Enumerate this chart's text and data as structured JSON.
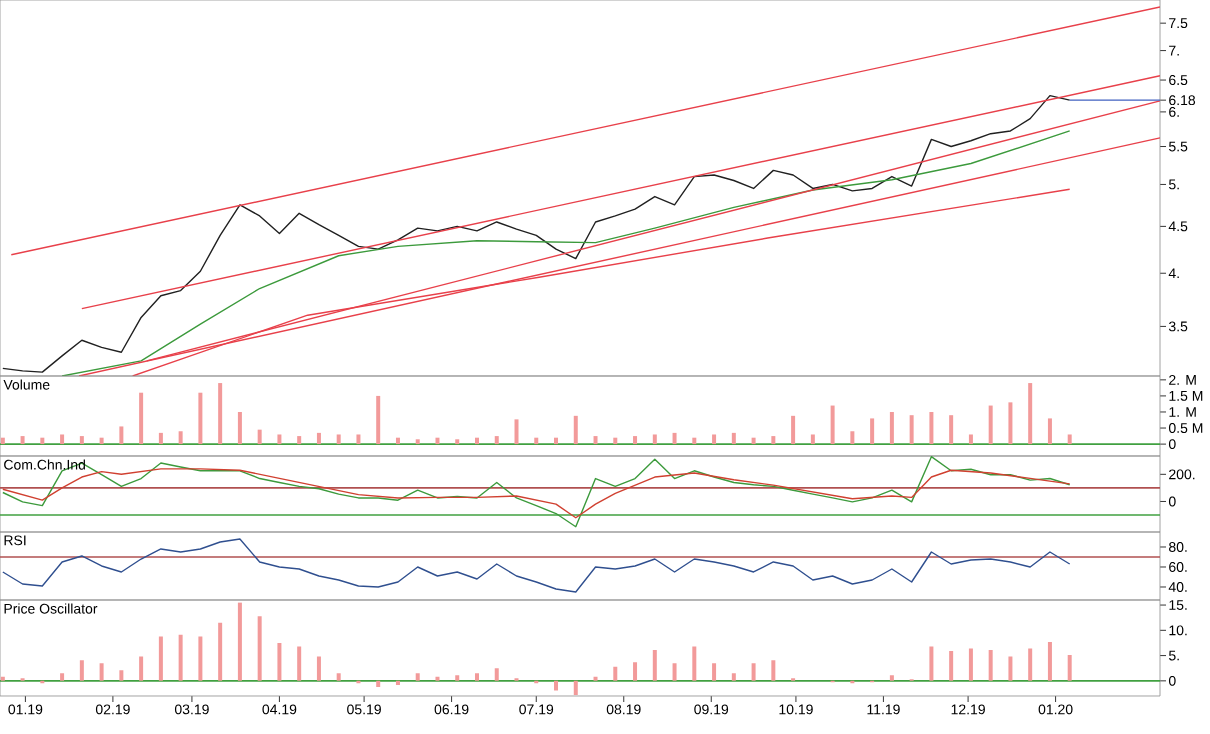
{
  "chart_data": [
    {
      "type": "line",
      "log": "y",
      "xlim": [
        "2018-12-23",
        "2020-02-07"
      ],
      "ylim": [
        3.09,
        7.95
      ],
      "tick_labels": "y",
      "yticks": [
        3.5,
        {
          "value": 4,
          "label": "4."
        },
        4.5,
        {
          "value": 5,
          "label": "5."
        },
        5.5,
        {
          "value": 6,
          "label": "6."
        },
        6.18,
        6.5,
        {
          "value": 7,
          "label": "7."
        },
        7.5
      ],
      "x": [
        "2018-12-24",
        "2018-12-31",
        "2019-01-07",
        "2019-01-14",
        "2019-01-21",
        "2019-01-28",
        "2019-02-04",
        "2019-02-11",
        "2019-02-18",
        "2019-02-25",
        "2019-03-04",
        "2019-03-11",
        "2019-03-18",
        "2019-03-25",
        "2019-04-01",
        "2019-04-08",
        "2019-04-15",
        "2019-04-22",
        "2019-04-29",
        "2019-05-06",
        "2019-05-13",
        "2019-05-20",
        "2019-05-27",
        "2019-06-03",
        "2019-06-10",
        "2019-06-17",
        "2019-06-24",
        "2019-07-01",
        "2019-07-08",
        "2019-07-15",
        "2019-07-22",
        "2019-07-29",
        "2019-08-05",
        "2019-08-12",
        "2019-08-19",
        "2019-08-26",
        "2019-09-02",
        "2019-09-09",
        "2019-09-16",
        "2019-09-23",
        "2019-09-30",
        "2019-10-07",
        "2019-10-14",
        "2019-10-21",
        "2019-10-28",
        "2019-11-04",
        "2019-11-11",
        "2019-11-18",
        "2019-11-25",
        "2019-12-02",
        "2019-12-09",
        "2019-12-16",
        "2019-12-23",
        "2019-12-30",
        "2020-01-06"
      ],
      "series": [
        {
          "color": "#202020",
          "values": [
            3.15,
            3.13,
            3.12,
            3.25,
            3.38,
            3.32,
            3.28,
            3.58,
            3.78,
            3.83,
            4.02,
            4.4,
            4.75,
            4.62,
            4.42,
            4.65,
            4.52,
            4.4,
            4.28,
            4.25,
            4.35,
            4.48,
            4.45,
            4.5,
            4.45,
            4.55,
            4.47,
            4.4,
            4.25,
            4.15,
            4.55,
            4.62,
            4.7,
            4.85,
            4.75,
            5.1,
            5.12,
            5.05,
            4.95,
            5.18,
            5.12,
            4.95,
            5.0,
            4.92,
            4.95,
            5.1,
            4.98,
            5.6,
            5.5,
            5.58,
            5.68,
            5.72,
            5.9,
            6.25,
            6.18
          ]
        },
        {
          "color": "#3c9a3c",
          "x": [
            "2019-01-14",
            "2019-02-11",
            "2019-03-04",
            "2019-03-25",
            "2019-04-22",
            "2019-05-13",
            "2019-06-10",
            "2019-07-01",
            "2019-07-22",
            "2019-08-12",
            "2019-09-09",
            "2019-10-07",
            "2019-11-04",
            "2019-12-02",
            "2020-01-06"
          ],
          "values": [
            3.09,
            3.21,
            3.52,
            3.85,
            4.18,
            4.28,
            4.34,
            4.33,
            4.32,
            4.48,
            4.72,
            4.93,
            5.06,
            5.27,
            5.72
          ]
        },
        {
          "color": "#e8404a",
          "x": [
            "2018-12-27",
            "2020-02-07"
          ],
          "values": [
            4.19,
            7.81
          ]
        },
        {
          "color": "#e8404a",
          "x": [
            "2019-01-21",
            "2020-02-07"
          ],
          "values": [
            3.66,
            6.57
          ]
        },
        {
          "color": "#e8404a",
          "x": [
            "2019-02-13",
            "2020-02-07"
          ],
          "values": [
            3.21,
            6.17
          ]
        },
        {
          "color": "#e8404a",
          "x": [
            "2019-01-20",
            "2020-02-07"
          ],
          "values": [
            3.09,
            5.62
          ]
        },
        {
          "color": "#e8404a",
          "x": [
            "2019-02-08",
            "2019-04-11",
            "2019-07-02",
            "2019-09-21",
            "2020-01-06"
          ],
          "values": [
            3.09,
            3.6,
            3.96,
            4.37,
            4.94
          ]
        },
        {
          "color": "#4060c0",
          "x": [
            "2020-01-06",
            "2020-02-07"
          ],
          "values": [
            6.18,
            6.18
          ]
        }
      ]
    },
    {
      "type": "bar",
      "title": "Volume",
      "xlim": [
        "2018-12-23",
        "2020-02-07"
      ],
      "ylim": [
        -0.37,
        2.12
      ],
      "tick_labels": "y",
      "color": "#f29a9a",
      "yticks": [
        0,
        {
          "value": 0.5,
          "label": "0.5 M"
        },
        {
          "value": 1,
          "label": "1. M"
        },
        {
          "value": 1.5,
          "label": "1.5 M"
        },
        {
          "value": 2,
          "label": "2. M"
        }
      ],
      "ref_lines": [
        {
          "axis": "y",
          "value": 0,
          "color": "#40a040"
        }
      ],
      "x": [
        "2018-12-24",
        "2018-12-31",
        "2019-01-07",
        "2019-01-14",
        "2019-01-21",
        "2019-01-28",
        "2019-02-04",
        "2019-02-11",
        "2019-02-18",
        "2019-02-25",
        "2019-03-04",
        "2019-03-11",
        "2019-03-18",
        "2019-03-25",
        "2019-04-01",
        "2019-04-08",
        "2019-04-15",
        "2019-04-22",
        "2019-04-29",
        "2019-05-06",
        "2019-05-13",
        "2019-05-20",
        "2019-05-27",
        "2019-06-03",
        "2019-06-10",
        "2019-06-17",
        "2019-06-24",
        "2019-07-01",
        "2019-07-08",
        "2019-07-15",
        "2019-07-22",
        "2019-07-29",
        "2019-08-05",
        "2019-08-12",
        "2019-08-19",
        "2019-08-26",
        "2019-09-02",
        "2019-09-09",
        "2019-09-16",
        "2019-09-23",
        "2019-09-30",
        "2019-10-07",
        "2019-10-14",
        "2019-10-21",
        "2019-10-28",
        "2019-11-04",
        "2019-11-11",
        "2019-11-18",
        "2019-11-25",
        "2019-12-02",
        "2019-12-09",
        "2019-12-16",
        "2019-12-23",
        "2019-12-30",
        "2020-01-06"
      ],
      "values": [
        0.2,
        0.25,
        0.2,
        0.3,
        0.25,
        0.2,
        0.55,
        1.6,
        0.35,
        0.4,
        1.6,
        1.9,
        1.0,
        0.45,
        0.3,
        0.25,
        0.35,
        0.3,
        0.3,
        1.5,
        0.2,
        0.15,
        0.2,
        0.15,
        0.2,
        0.25,
        0.77,
        0.2,
        0.2,
        0.88,
        0.25,
        0.2,
        0.25,
        0.3,
        0.35,
        0.2,
        0.3,
        0.35,
        0.2,
        0.25,
        0.88,
        0.3,
        1.2,
        0.4,
        0.8,
        1.0,
        0.9,
        1.0,
        0.9,
        0.3,
        1.2,
        1.3,
        1.9,
        0.8,
        0.3
      ]
    },
    {
      "type": "line",
      "title": "Com.Chn.Ind",
      "xlim": [
        "2018-12-23",
        "2020-02-07"
      ],
      "ylim": [
        -225,
        335
      ],
      "tick_labels": "y",
      "yticks": [
        0,
        {
          "value": 200,
          "label": "200."
        }
      ],
      "ref_lines": [
        {
          "axis": "y",
          "value": 100,
          "color": "#b05050"
        },
        {
          "axis": "y",
          "value": -100,
          "color": "#40a040"
        }
      ],
      "x": [
        "2018-12-24",
        "2018-12-31",
        "2019-01-07",
        "2019-01-14",
        "2019-01-21",
        "2019-01-28",
        "2019-02-04",
        "2019-02-11",
        "2019-02-18",
        "2019-02-25",
        "2019-03-04",
        "2019-03-11",
        "2019-03-18",
        "2019-03-25",
        "2019-04-01",
        "2019-04-08",
        "2019-04-15",
        "2019-04-22",
        "2019-04-29",
        "2019-05-06",
        "2019-05-13",
        "2019-05-20",
        "2019-05-27",
        "2019-06-03",
        "2019-06-10",
        "2019-06-17",
        "2019-06-24",
        "2019-07-01",
        "2019-07-08",
        "2019-07-15",
        "2019-07-22",
        "2019-07-29",
        "2019-08-05",
        "2019-08-12",
        "2019-08-19",
        "2019-08-26",
        "2019-09-02",
        "2019-09-09",
        "2019-09-16",
        "2019-09-23",
        "2019-09-30",
        "2019-10-07",
        "2019-10-14",
        "2019-10-21",
        "2019-10-28",
        "2019-11-04",
        "2019-11-11",
        "2019-11-18",
        "2019-11-25",
        "2019-12-02",
        "2019-12-09",
        "2019-12-16",
        "2019-12-23",
        "2019-12-30",
        "2020-01-06"
      ],
      "series": [
        {
          "color": "#3c9a3c",
          "values": [
            66,
            -3,
            -31,
            226,
            283,
            197,
            111,
            169,
            283,
            254,
            226,
            226,
            226,
            169,
            140,
            111,
            94,
            54,
            26,
            26,
            9,
            83,
            26,
            37,
            26,
            140,
            26,
            -31,
            -89,
            -186,
            169,
            111,
            169,
            311,
            169,
            226,
            180,
            140,
            123,
            111,
            83,
            54,
            26,
            -3,
            26,
            83,
            -3,
            330,
            226,
            237,
            197,
            197,
            157,
            169,
            123
          ]
        },
        {
          "color": "#d04030",
          "x": [
            "2018-12-24",
            "2019-01-07",
            "2019-01-14",
            "2019-01-21",
            "2019-01-28",
            "2019-02-04",
            "2019-02-18",
            "2019-03-04",
            "2019-03-18",
            "2019-04-01",
            "2019-04-15",
            "2019-04-29",
            "2019-05-13",
            "2019-05-27",
            "2019-06-10",
            "2019-06-24",
            "2019-07-08",
            "2019-07-15",
            "2019-07-22",
            "2019-07-29",
            "2019-08-12",
            "2019-08-26",
            "2019-09-09",
            "2019-09-23",
            "2019-10-07",
            "2019-10-21",
            "2019-11-04",
            "2019-11-11",
            "2019-11-18",
            "2019-11-25",
            "2019-12-09",
            "2019-12-23",
            "2020-01-06"
          ],
          "values": [
            90,
            10,
            100,
            180,
            220,
            200,
            240,
            240,
            230,
            170,
            110,
            50,
            25,
            30,
            30,
            40,
            -20,
            -120,
            -20,
            60,
            180,
            210,
            160,
            120,
            70,
            20,
            40,
            30,
            180,
            230,
            210,
            170,
            130
          ]
        }
      ]
    },
    {
      "type": "line",
      "title": "RSI",
      "xlim": [
        "2018-12-23",
        "2020-02-07"
      ],
      "ylim": [
        27,
        95
      ],
      "tick_labels": "y",
      "yticks": [
        {
          "value": 40,
          "label": "40."
        },
        {
          "value": 60,
          "label": "60."
        },
        {
          "value": 80,
          "label": "80."
        }
      ],
      "ref_lines": [
        {
          "axis": "y",
          "value": 70,
          "color": "#b05050"
        }
      ],
      "x": [
        "2018-12-24",
        "2018-12-31",
        "2019-01-07",
        "2019-01-14",
        "2019-01-21",
        "2019-01-28",
        "2019-02-04",
        "2019-02-11",
        "2019-02-18",
        "2019-02-25",
        "2019-03-04",
        "2019-03-11",
        "2019-03-18",
        "2019-03-25",
        "2019-04-01",
        "2019-04-08",
        "2019-04-15",
        "2019-04-22",
        "2019-04-29",
        "2019-05-06",
        "2019-05-13",
        "2019-05-20",
        "2019-05-27",
        "2019-06-03",
        "2019-06-10",
        "2019-06-17",
        "2019-06-24",
        "2019-07-01",
        "2019-07-08",
        "2019-07-15",
        "2019-07-22",
        "2019-07-29",
        "2019-08-05",
        "2019-08-12",
        "2019-08-19",
        "2019-08-26",
        "2019-09-02",
        "2019-09-09",
        "2019-09-16",
        "2019-09-23",
        "2019-09-30",
        "2019-10-07",
        "2019-10-14",
        "2019-10-21",
        "2019-10-28",
        "2019-11-04",
        "2019-11-11",
        "2019-11-18",
        "2019-11-25",
        "2019-12-02",
        "2019-12-09",
        "2019-12-16",
        "2019-12-23",
        "2019-12-30",
        "2020-01-06"
      ],
      "series": [
        {
          "color": "#2f4f8f",
          "values": [
            55,
            43,
            41,
            65,
            71,
            61,
            55,
            68,
            78,
            75,
            78,
            85,
            88,
            65,
            60,
            58,
            51,
            47,
            41,
            40,
            45,
            60,
            51,
            55,
            48,
            63,
            51,
            45,
            38,
            35,
            60,
            58,
            61,
            68,
            55,
            68,
            65,
            61,
            55,
            65,
            61,
            47,
            51,
            43,
            47,
            58,
            45,
            75,
            63,
            67,
            68,
            65,
            60,
            75,
            63
          ]
        }
      ]
    },
    {
      "type": "bar",
      "title": "Price Oscillator",
      "xlim": [
        "2018-12-23",
        "2020-02-07"
      ],
      "ylim": [
        -3,
        16
      ],
      "color": "#f29a9a",
      "yticks": [
        0,
        {
          "value": 5,
          "label": "5."
        },
        {
          "value": 10,
          "label": "10."
        },
        {
          "value": 15,
          "label": "15."
        }
      ],
      "xticks": [
        {
          "value": "2019-01-01",
          "label": "01.19"
        },
        {
          "value": "2019-02-01",
          "label": "02.19"
        },
        {
          "value": "2019-03-01",
          "label": "03.19"
        },
        {
          "value": "2019-04-01",
          "label": "04.19"
        },
        {
          "value": "2019-05-01",
          "label": "05.19"
        },
        {
          "value": "2019-06-01",
          "label": "06.19"
        },
        {
          "value": "2019-07-01",
          "label": "07.19"
        },
        {
          "value": "2019-08-01",
          "label": "08.19"
        },
        {
          "value": "2019-09-01",
          "label": "09.19"
        },
        {
          "value": "2019-10-01",
          "label": "10.19"
        },
        {
          "value": "2019-11-01",
          "label": "11.19"
        },
        {
          "value": "2019-12-01",
          "label": "12.19"
        },
        {
          "value": "2020-01-01",
          "label": "01.20"
        }
      ],
      "ref_lines": [
        {
          "axis": "y",
          "value": 0,
          "color": "#40a040"
        }
      ],
      "x": [
        "2018-12-24",
        "2018-12-31",
        "2019-01-07",
        "2019-01-14",
        "2019-01-21",
        "2019-01-28",
        "2019-02-04",
        "2019-02-11",
        "2019-02-18",
        "2019-02-25",
        "2019-03-04",
        "2019-03-11",
        "2019-03-18",
        "2019-03-25",
        "2019-04-01",
        "2019-04-08",
        "2019-04-15",
        "2019-04-22",
        "2019-04-29",
        "2019-05-06",
        "2019-05-13",
        "2019-05-20",
        "2019-05-27",
        "2019-06-03",
        "2019-06-10",
        "2019-06-17",
        "2019-06-24",
        "2019-07-01",
        "2019-07-08",
        "2019-07-15",
        "2019-07-22",
        "2019-07-29",
        "2019-08-05",
        "2019-08-12",
        "2019-08-19",
        "2019-08-26",
        "2019-09-02",
        "2019-09-09",
        "2019-09-16",
        "2019-09-23",
        "2019-09-30",
        "2019-10-07",
        "2019-10-14",
        "2019-10-21",
        "2019-10-28",
        "2019-11-04",
        "2019-11-11",
        "2019-11-18",
        "2019-11-25",
        "2019-12-02",
        "2019-12-09",
        "2019-12-16",
        "2019-12-23",
        "2019-12-30",
        "2020-01-06"
      ],
      "values": [
        0.8,
        0.5,
        -0.5,
        1.5,
        4.1,
        3.5,
        2.1,
        4.8,
        8.8,
        9.1,
        8.8,
        11.5,
        15.5,
        12.8,
        7.5,
        6.8,
        4.8,
        1.5,
        -0.5,
        -1.2,
        -0.8,
        1.5,
        0.8,
        1.1,
        1.5,
        2.5,
        0.5,
        -0.5,
        -1.9,
        -2.8,
        0.8,
        2.8,
        3.7,
        6.1,
        3.5,
        6.8,
        3.5,
        1.5,
        3.5,
        4.1,
        0.5,
        0,
        -0.3,
        -0.5,
        -0.3,
        1.1,
        0.3,
        6.8,
        5.9,
        6.4,
        6.1,
        4.8,
        6.4,
        7.7,
        5.1
      ]
    }
  ]
}
